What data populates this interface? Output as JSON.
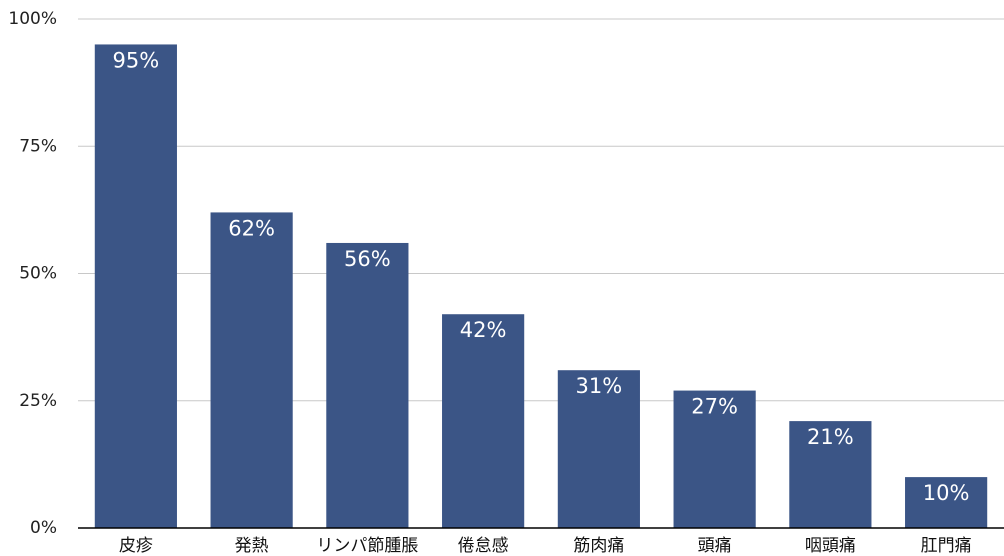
{
  "chart_data": {
    "type": "bar",
    "categories": [
      "皮疹",
      "発熱",
      "リンパ節腫脹",
      "倦怠感",
      "筋肉痛",
      "頭痛",
      "咽頭痛",
      "肛門痛"
    ],
    "values": [
      95,
      62,
      56,
      42,
      31,
      27,
      21,
      10
    ],
    "value_labels": [
      "95%",
      "62%",
      "56%",
      "42%",
      "31%",
      "27%",
      "21%",
      "10%"
    ],
    "color": "#3b5586",
    "ylim": [
      0,
      100
    ],
    "yticks": [
      {
        "value": 0,
        "label": "0%"
      },
      {
        "value": 25,
        "label": "25%"
      },
      {
        "value": 50,
        "label": "50%"
      },
      {
        "value": 75,
        "label": "75%"
      },
      {
        "value": 100,
        "label": "100%"
      }
    ],
    "grid": true
  }
}
